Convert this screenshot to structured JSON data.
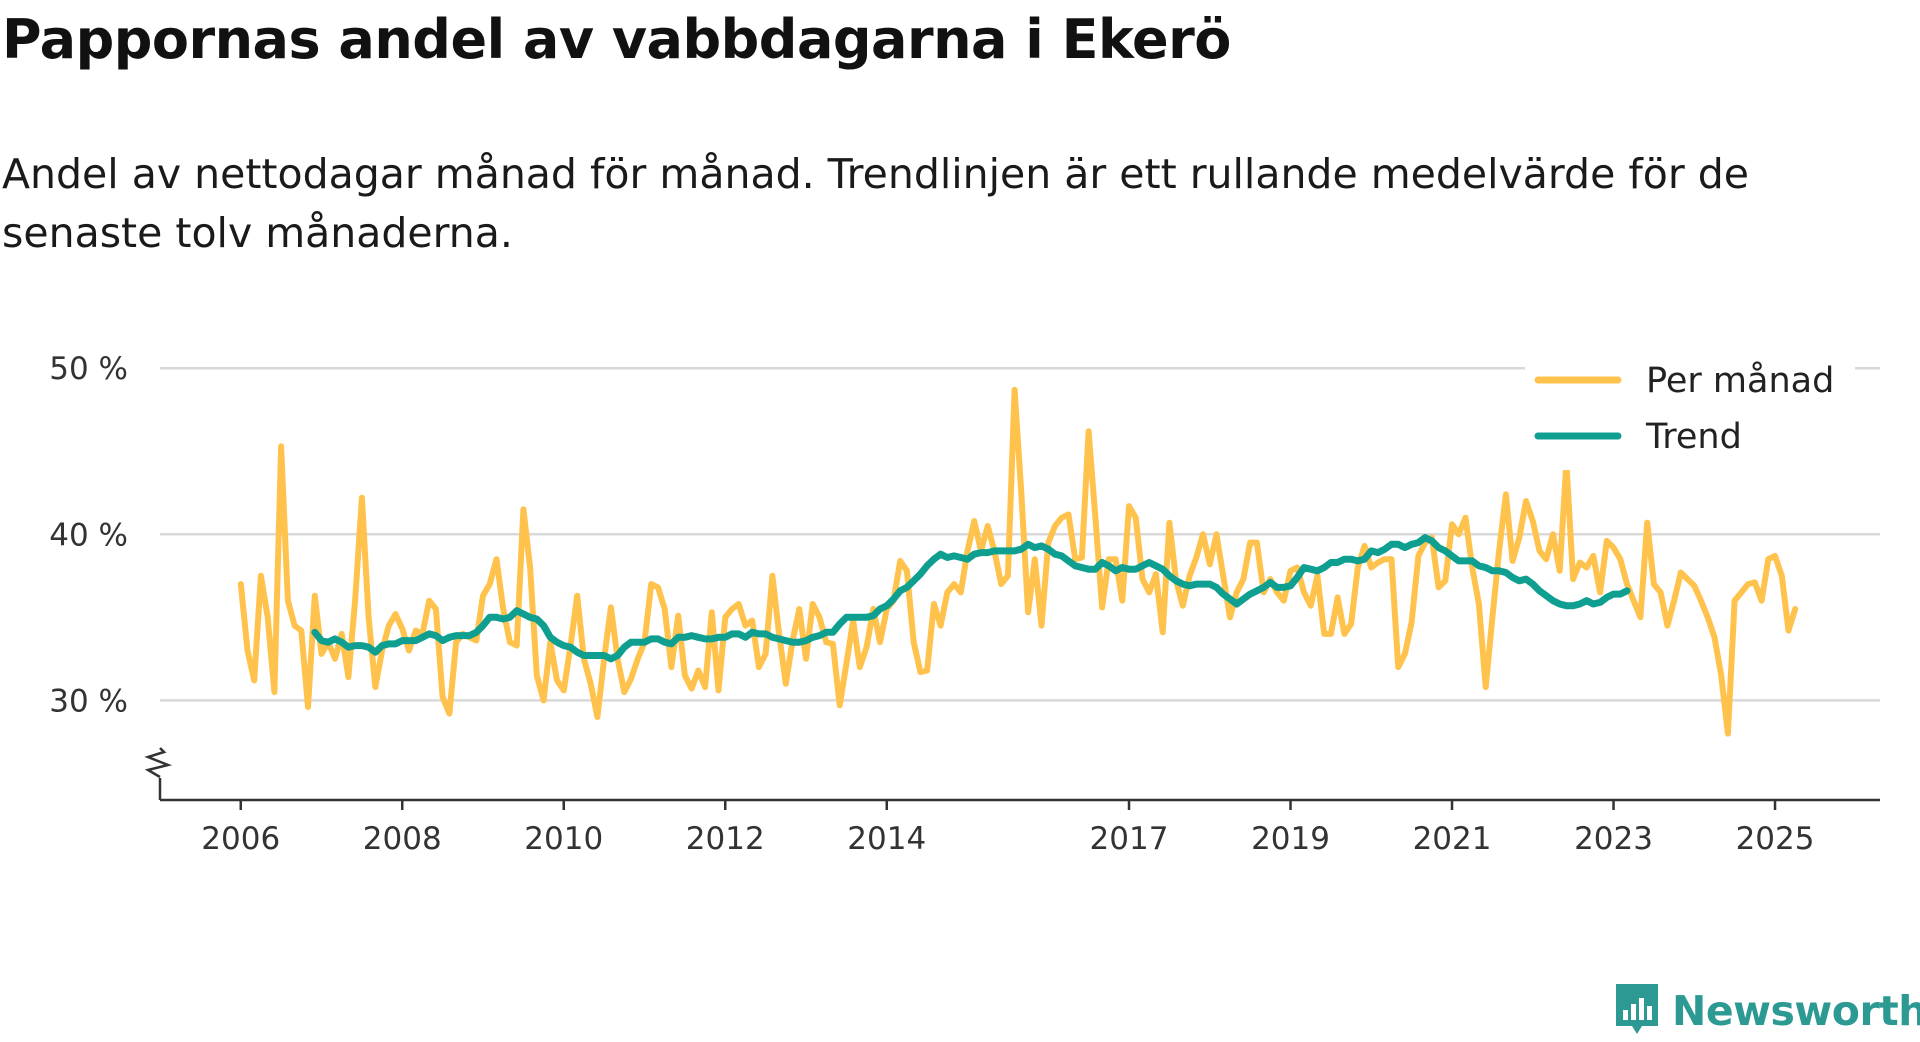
{
  "title": "Pappornas andel av vabbdagarna i Ekerö",
  "subtitle": "Andel av nettodagar månad för månad. Trendlinjen är ett rullande medelvärde för de senaste tolv månaderna.",
  "brand": "Newsworthy",
  "colors": {
    "monthly": "#ffc34d",
    "trend": "#0f9f90",
    "grid": "#d9d9d9",
    "axis": "#333333",
    "brand": "#2c9a92"
  },
  "chart_data": {
    "type": "line",
    "title": "Pappornas andel av vabbdagarna i Ekerö",
    "xlabel": "",
    "ylabel": "",
    "x_range": [
      2005.0,
      2026.3
    ],
    "ylim": [
      24,
      52
    ],
    "y_ticks": [
      30,
      40,
      50
    ],
    "y_tick_labels": [
      "30 %",
      "40 %",
      "50 %"
    ],
    "x_ticks": [
      2006,
      2008,
      2010,
      2012,
      2014,
      2017,
      2019,
      2021,
      2023,
      2025
    ],
    "x_tick_labels": [
      "2006",
      "2008",
      "2010",
      "2012",
      "2014",
      "2017",
      "2019",
      "2021",
      "2023",
      "2025"
    ],
    "legend": {
      "position": "top-right",
      "entries": [
        "Per månad",
        "Trend"
      ]
    },
    "axis_break": true,
    "series": [
      {
        "name": "Per månad",
        "start": "2006-01",
        "values": [
          37.0,
          33.0,
          31.2,
          37.5,
          35.0,
          30.5,
          45.3,
          36.0,
          34.5,
          34.2,
          29.6,
          36.3,
          32.8,
          33.5,
          32.5,
          34.0,
          31.4,
          36.0,
          42.2,
          35.0,
          30.8,
          33.0,
          34.5,
          35.2,
          34.3,
          33.0,
          34.2,
          34.0,
          36.0,
          35.5,
          30.2,
          29.2,
          33.5,
          34.0,
          33.8,
          33.6,
          36.3,
          37.0,
          38.5,
          35.5,
          33.5,
          33.3,
          41.5,
          38.0,
          31.5,
          30.0,
          33.5,
          31.2,
          30.6,
          33.3,
          36.3,
          32.5,
          31.0,
          29.0,
          32.5,
          35.6,
          32.5,
          30.5,
          31.3,
          32.5,
          33.5,
          37.0,
          36.8,
          35.5,
          32.0,
          35.1,
          31.5,
          30.7,
          31.8,
          30.8,
          35.3,
          30.6,
          35.0,
          35.5,
          35.8,
          34.5,
          34.8,
          32.0,
          32.8,
          37.5,
          34.0,
          31.0,
          33.6,
          35.5,
          32.5,
          35.8,
          35.0,
          33.5,
          33.4,
          29.7,
          32.2,
          34.8,
          32.0,
          33.2,
          35.5,
          33.5,
          35.5,
          36.0,
          38.4,
          37.8,
          33.5,
          31.7,
          31.8,
          35.8,
          34.5,
          36.5,
          37.0,
          36.5,
          39.0,
          40.8,
          39.0,
          40.5,
          39.0,
          37.0,
          37.5,
          48.7,
          42.5,
          35.3,
          38.5,
          34.5,
          39.5,
          40.5,
          41.0,
          41.2,
          38.5,
          38.6,
          46.2,
          41.0,
          35.6,
          38.5,
          38.5,
          36.0,
          41.7,
          41.0,
          37.3,
          36.5,
          37.6,
          34.1,
          40.7,
          37.2,
          35.7,
          37.5,
          38.6,
          40.0,
          38.2,
          40.0,
          37.5,
          35.0,
          36.5,
          37.3,
          39.5,
          39.5,
          36.5,
          37.3,
          36.5,
          36.0,
          37.8,
          38.0,
          36.5,
          35.7,
          37.5,
          34.0,
          34.0,
          36.2,
          34.0,
          34.6,
          38.0,
          39.3,
          38.0,
          38.3,
          38.5,
          38.5,
          32.0,
          32.8,
          34.7,
          38.7,
          39.5,
          39.8,
          36.8,
          37.2,
          40.6,
          40.0,
          41.0,
          38.0,
          35.8,
          30.8,
          35.0,
          39.0,
          42.4,
          38.4,
          39.8,
          42.0,
          40.8,
          39.0,
          38.5,
          40.0,
          37.8,
          44.3,
          37.3,
          38.3,
          38.0,
          38.7,
          36.5,
          39.6,
          39.2,
          38.5,
          37.0,
          36.0,
          35.0,
          40.7,
          37.0,
          36.5,
          34.5,
          36.0,
          37.7,
          37.3,
          36.9,
          36.0,
          35.0,
          33.8,
          31.5,
          28.0,
          36.0,
          36.5,
          37.0,
          37.1,
          36.0,
          38.5,
          38.7,
          37.5,
          34.2,
          35.5
        ]
      },
      {
        "name": "Trend",
        "start": "2006-12",
        "values": [
          34.1,
          33.6,
          33.5,
          33.7,
          33.5,
          33.2,
          33.3,
          33.3,
          33.2,
          32.9,
          33.3,
          33.4,
          33.4,
          33.6,
          33.6,
          33.6,
          33.8,
          34.0,
          33.9,
          33.6,
          33.8,
          33.9,
          33.9,
          33.9,
          34.1,
          34.5,
          35.0,
          35.0,
          34.9,
          35.0,
          35.4,
          35.2,
          35.0,
          34.9,
          34.5,
          33.8,
          33.5,
          33.3,
          33.2,
          32.9,
          32.7,
          32.7,
          32.7,
          32.7,
          32.5,
          32.7,
          33.2,
          33.5,
          33.5,
          33.5,
          33.7,
          33.7,
          33.5,
          33.4,
          33.8,
          33.8,
          33.9,
          33.8,
          33.7,
          33.7,
          33.8,
          33.8,
          34.0,
          34.0,
          33.8,
          34.1,
          34.0,
          34.0,
          33.8,
          33.7,
          33.6,
          33.5,
          33.5,
          33.6,
          33.8,
          33.9,
          34.1,
          34.1,
          34.6,
          35.0,
          35.0,
          35.0,
          35.0,
          35.1,
          35.5,
          35.7,
          36.1,
          36.6,
          36.8,
          37.2,
          37.6,
          38.1,
          38.5,
          38.8,
          38.6,
          38.7,
          38.6,
          38.5,
          38.8,
          38.9,
          38.9,
          39.0,
          39.0,
          39.0,
          39.0,
          39.1,
          39.4,
          39.2,
          39.3,
          39.1,
          38.8,
          38.7,
          38.4,
          38.1,
          38.0,
          37.9,
          37.9,
          38.3,
          38.1,
          37.8,
          38.0,
          37.9,
          37.9,
          38.1,
          38.3,
          38.1,
          37.9,
          37.5,
          37.2,
          37.0,
          36.9,
          37.0,
          37.0,
          37.0,
          36.8,
          36.4,
          36.1,
          35.8,
          36.1,
          36.4,
          36.6,
          36.8,
          37.1,
          36.8,
          36.8,
          36.9,
          37.4,
          38.0,
          37.9,
          37.8,
          38.0,
          38.3,
          38.3,
          38.5,
          38.5,
          38.4,
          38.5,
          39.0,
          38.9,
          39.1,
          39.4,
          39.4,
          39.2,
          39.4,
          39.5,
          39.8,
          39.6,
          39.2,
          39.0,
          38.7,
          38.4,
          38.4,
          38.4,
          38.1,
          38.0,
          37.8,
          37.8,
          37.7,
          37.4,
          37.2,
          37.3,
          37.0,
          36.6,
          36.3,
          36.0,
          35.8,
          35.7,
          35.7,
          35.8,
          36.0,
          35.8,
          35.9,
          36.2,
          36.4,
          36.4,
          36.6
        ]
      }
    ]
  }
}
